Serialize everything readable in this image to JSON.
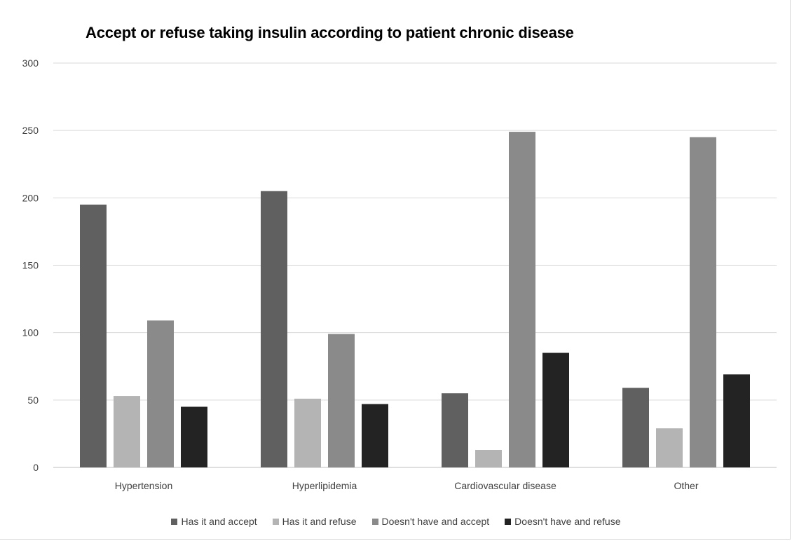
{
  "chart_data": {
    "type": "bar",
    "title": "Accept or refuse taking insulin according to patient chronic disease",
    "categories": [
      "Hypertension",
      "Hyperlipidemia",
      "Cardiovascular disease",
      "Other"
    ],
    "series": [
      {
        "name": "Has it and accept",
        "color": "#606060",
        "values": [
          195,
          205,
          55,
          59
        ]
      },
      {
        "name": "Has it and refuse",
        "color": "#b4b4b4",
        "values": [
          53,
          51,
          13,
          29
        ]
      },
      {
        "name": "Doesn't have and accept",
        "color": "#8a8a8a",
        "values": [
          109,
          99,
          249,
          245
        ]
      },
      {
        "name": "Doesn't have and refuse",
        "color": "#232323",
        "values": [
          45,
          47,
          85,
          69
        ]
      }
    ],
    "ylim": [
      0,
      300
    ],
    "yticks": [
      0,
      50,
      100,
      150,
      200,
      250,
      300
    ],
    "grid": true,
    "legend_position": "bottom"
  }
}
